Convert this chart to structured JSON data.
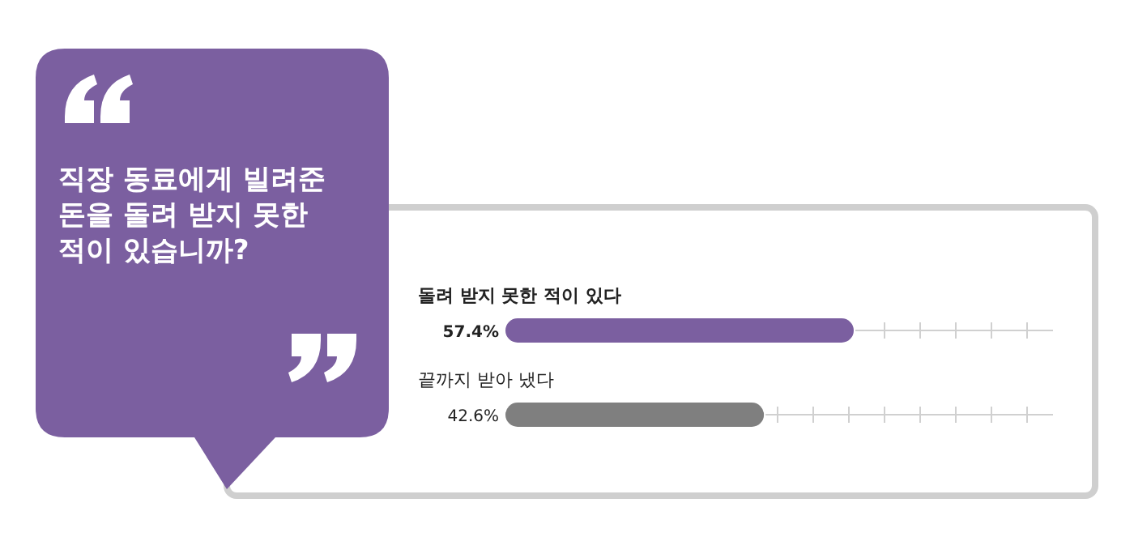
{
  "chart_data": {
    "type": "bar",
    "orientation": "horizontal",
    "title": "직장 동료에게 빌려준 돈을 돌려 받지 못한 적이 있습니까?",
    "categories": [
      "돌려 받지 못한 적이 있다",
      "끝까지 받아 냈다"
    ],
    "values": [
      57.4,
      42.6
    ],
    "colors": [
      "#7b5fa0",
      "#7f7f7f"
    ],
    "value_labels": [
      "57.4%",
      "42.6%"
    ]
  }
}
